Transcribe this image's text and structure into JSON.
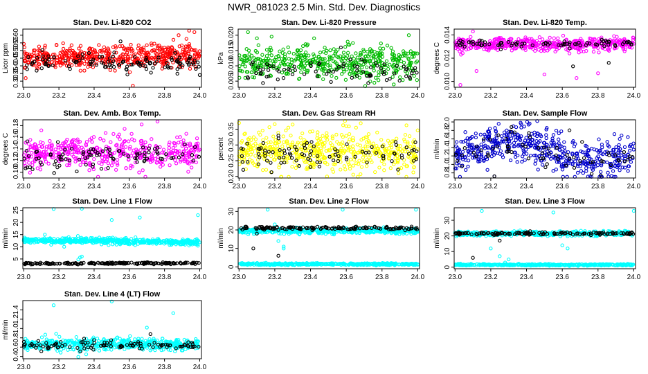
{
  "page": {
    "title": "NWR_081023  2.5 Min. Std. Dev. Diagnostics"
  },
  "chart_data": [
    {
      "type": "scatter",
      "title": "Stan. Dev. Li-820 CO2",
      "ylabel": "Licor ppm",
      "xlim": [
        22.995,
        24.01
      ],
      "ylim": [
        0.26,
        0.64
      ],
      "xticks": [
        "23.0",
        "23.2",
        "23.4",
        "23.6",
        "23.8",
        "24.0"
      ],
      "yticks": [
        "0.30",
        "0.35",
        "0.40",
        "0.45",
        "0.50",
        "0.55",
        "0.60"
      ],
      "grid": false,
      "series": [
        {
          "color": "#ff0000",
          "n": 520,
          "center": 0.46,
          "spread": 0.08,
          "drift": 0.03,
          "outliers": [
            [
              23.62,
              0.27
            ],
            [
              23.94,
              0.63
            ],
            [
              23.97,
              0.62
            ],
            [
              23.88,
              0.6
            ]
          ]
        },
        {
          "color": "#000000",
          "n": 120,
          "center": 0.42,
          "spread": 0.06,
          "drift": 0.0,
          "outliers": [
            [
              23.55,
              0.56
            ],
            [
              24.0,
              0.34
            ]
          ]
        }
      ]
    },
    {
      "type": "scatter",
      "title": "Stan. Dev. Li-820 Pressure",
      "ylabel": "kPa",
      "xlim": [
        22.995,
        24.01
      ],
      "ylim": [
        0.003,
        0.022
      ],
      "xticks": [
        "23.0",
        "23.2",
        "23.4",
        "23.6",
        "23.8",
        "24.0"
      ],
      "yticks": [
        "0.005",
        "0.010",
        "0.015",
        "0.020"
      ],
      "grid": false,
      "series": [
        {
          "color": "#00bb00",
          "n": 480,
          "center": 0.011,
          "spread": 0.006,
          "drift": 0.0,
          "outliers": [
            [
              23.05,
              0.021
            ],
            [
              23.1,
              0.019
            ],
            [
              23.95,
              0.02
            ],
            [
              23.42,
              0.019
            ]
          ]
        },
        {
          "color": "#000000",
          "n": 80,
          "center": 0.008,
          "spread": 0.004,
          "drift": 0.0,
          "outliers": [
            [
              23.57,
              0.016
            ]
          ]
        }
      ]
    },
    {
      "type": "scatter",
      "title": "Stan. Dev. Li-820 Temp.",
      "ylabel": "degrees C",
      "xlim": [
        22.995,
        24.01
      ],
      "ylim": [
        0.0095,
        0.0145
      ],
      "xticks": [
        "23.0",
        "23.2",
        "23.4",
        "23.6",
        "23.8",
        "24.0"
      ],
      "yticks": [
        "0.010",
        "0.012",
        "0.014"
      ],
      "grid": false,
      "series": [
        {
          "color": "#ff00ff",
          "n": 480,
          "center": 0.0132,
          "spread": 0.0006,
          "drift": 0.0,
          "outliers": [
            [
              23.03,
              0.0097
            ],
            [
              23.12,
              0.0109
            ],
            [
              23.5,
              0.0106
            ],
            [
              23.68,
              0.0103
            ],
            [
              23.8,
              0.0107
            ],
            [
              23.1,
              0.0143
            ]
          ]
        },
        {
          "color": "#000000",
          "n": 80,
          "center": 0.0132,
          "spread": 0.0004,
          "drift": 0.0,
          "outliers": [
            [
              23.66,
              0.0113
            ],
            [
              23.86,
              0.0116
            ]
          ]
        }
      ]
    },
    {
      "type": "scatter",
      "title": "Stan. Dev. Amb. Box Temp.",
      "ylabel": "degrees C",
      "xlim": [
        22.995,
        24.01
      ],
      "ylim": [
        0.09,
        0.19
      ],
      "xticks": [
        "23.0",
        "23.2",
        "23.4",
        "23.6",
        "23.8",
        "24.0"
      ],
      "yticks": [
        "0.10",
        "0.12",
        "0.14",
        "0.16",
        "0.18"
      ],
      "grid": false,
      "series": [
        {
          "color": "#ff00ff",
          "n": 470,
          "center": 0.132,
          "spread": 0.03,
          "drift": 0.0,
          "outliers": [
            [
              23.76,
              0.187
            ],
            [
              23.67,
              0.182
            ],
            [
              23.1,
              0.172
            ]
          ]
        },
        {
          "color": "#000000",
          "n": 90,
          "center": 0.128,
          "spread": 0.025,
          "drift": 0.0,
          "outliers": [
            [
              23.02,
              0.153
            ],
            [
              23.05,
              0.105
            ]
          ]
        }
      ]
    },
    {
      "type": "scatter",
      "title": "Stan. Dev. Gas Stream RH",
      "ylabel": "percent",
      "xlim": [
        22.995,
        24.01
      ],
      "ylim": [
        0.195,
        0.38
      ],
      "xticks": [
        "23.0",
        "23.2",
        "23.4",
        "23.6",
        "23.8",
        "24.0"
      ],
      "yticks": [
        "0.20",
        "0.25",
        "0.30",
        "0.35"
      ],
      "grid": false,
      "series": [
        {
          "color": "#ffff00",
          "n": 520,
          "center": 0.28,
          "spread": 0.07,
          "drift": 0.0,
          "outliers": [
            [
              23.0,
              0.37
            ],
            [
              23.3,
              0.365
            ],
            [
              23.6,
              0.36
            ]
          ]
        },
        {
          "color": "#000000",
          "n": 90,
          "center": 0.27,
          "spread": 0.05,
          "drift": 0.0,
          "outliers": [
            [
              23.22,
              0.33
            ],
            [
              23.88,
              0.3
            ]
          ]
        }
      ]
    },
    {
      "type": "scatter",
      "title": "Stan. Dev. Sample Flow",
      "ylabel": "ml/min",
      "xlim": [
        22.995,
        24.01
      ],
      "ylim": [
        0.68,
        2.05
      ],
      "xticks": [
        "23.0",
        "23.2",
        "23.4",
        "23.6",
        "23.8",
        "24.0"
      ],
      "yticks": [
        "0.8",
        "1.0",
        "1.2",
        "1.4",
        "1.6",
        "1.8",
        "2.0"
      ],
      "grid": false,
      "series": [
        {
          "color": "#0000cc",
          "n": 520,
          "center": 1.3,
          "spread": 0.5,
          "drift": 0.0,
          "wave": 0.22,
          "outliers": [
            [
              23.46,
              2.02
            ],
            [
              23.37,
              1.95
            ],
            [
              23.22,
              0.72
            ]
          ]
        },
        {
          "color": "#000000",
          "n": 70,
          "center": 1.25,
          "spread": 0.4,
          "drift": 0.0,
          "wave": 0.2,
          "outliers": [
            [
              23.22,
              0.72
            ]
          ]
        }
      ]
    },
    {
      "type": "scatter",
      "title": "Stan. Dev. Line 1 Flow",
      "ylabel": "ml/min",
      "xlim": [
        22.995,
        24.01
      ],
      "ylim": [
        1,
        26
      ],
      "xticks": [
        "23.0",
        "23.2",
        "23.4",
        "23.6",
        "23.8",
        "24.0"
      ],
      "yticks": [
        "5",
        "10",
        "15",
        "20",
        "25"
      ],
      "grid": false,
      "series": [
        {
          "color": "#00ffff",
          "n": 560,
          "center": 12.3,
          "spread": 1.3,
          "drift": -1.0,
          "outliers": [
            [
              23.17,
              25.5
            ],
            [
              23.33,
              25.6
            ],
            [
              23.5,
              21
            ],
            [
              23.66,
              22
            ],
            [
              23.99,
              23
            ],
            [
              23.31,
              4.8
            ],
            [
              23.32,
              5.6
            ],
            [
              23.33,
              6
            ],
            [
              23.12,
              15
            ],
            [
              23.23,
              10
            ]
          ]
        },
        {
          "color": "#000000",
          "n": 200,
          "center": 3.2,
          "spread": 0.4,
          "drift": 0.2,
          "outliers": []
        }
      ]
    },
    {
      "type": "scatter",
      "title": "Stan. Dev. Line 2 Flow",
      "ylabel": "ml/min",
      "xlim": [
        22.995,
        24.01
      ],
      "ylim": [
        -1,
        32
      ],
      "xticks": [
        "23.0",
        "23.2",
        "23.4",
        "23.6",
        "23.8",
        "24.0"
      ],
      "yticks": [
        "0",
        "10",
        "20",
        "30"
      ],
      "grid": false,
      "series": [
        {
          "color": "#00ffff",
          "n": 480,
          "center": 19.5,
          "spread": 1.6,
          "drift": 0.0,
          "outliers": [
            [
              23.2,
              23
            ],
            [
              23.22,
              14
            ],
            [
              23.25,
              11
            ],
            [
              23.25,
              10
            ],
            [
              23.16,
              31
            ],
            [
              23.58,
              31
            ],
            [
              23.99,
              31
            ]
          ]
        },
        {
          "color": "#00ffff",
          "n": 420,
          "center": 1.5,
          "spread": 0.6,
          "drift": 0.0,
          "outliers": []
        },
        {
          "color": "#000000",
          "n": 140,
          "center": 21,
          "spread": 0.9,
          "drift": 0.0,
          "outliers": [
            [
              23.08,
              10
            ],
            [
              23.22,
              6
            ],
            [
              23.1,
              18
            ],
            [
              23.22,
              20
            ]
          ]
        }
      ]
    },
    {
      "type": "scatter",
      "title": "Stan. Dev. Line 3 Flow",
      "ylabel": "ml/min",
      "xlim": [
        22.995,
        24.01
      ],
      "ylim": [
        -1,
        38
      ],
      "xticks": [
        "23.0",
        "23.2",
        "23.4",
        "23.6",
        "23.8",
        "24.0"
      ],
      "yticks": [
        "0",
        "10",
        "20",
        "30"
      ],
      "grid": false,
      "series": [
        {
          "color": "#00ffff",
          "n": 460,
          "center": 21.5,
          "spread": 1.6,
          "drift": 0.0,
          "outliers": [
            [
              23.2,
              12
            ],
            [
              23.25,
              7
            ],
            [
              23.28,
              3
            ],
            [
              23.3,
              5
            ],
            [
              23.6,
              14
            ],
            [
              23.15,
              36
            ],
            [
              23.55,
              35
            ],
            [
              24.0,
              36
            ],
            [
              23.63,
              12
            ]
          ]
        },
        {
          "color": "#00ffff",
          "n": 420,
          "center": 1.5,
          "spread": 0.6,
          "drift": 0.0,
          "outliers": []
        },
        {
          "color": "#000000",
          "n": 130,
          "center": 21.5,
          "spread": 0.9,
          "drift": 0.0,
          "outliers": [
            [
              23.1,
              6
            ],
            [
              23.25,
              17
            ],
            [
              23.42,
              23
            ]
          ]
        }
      ]
    },
    {
      "type": "scatter",
      "title": "Stan. Dev. Line 4 (LT) Flow",
      "ylabel": "ml/min",
      "xlim": [
        22.995,
        24.01
      ],
      "ylim": [
        0.35,
        1.6
      ],
      "xticks": [
        "23.0",
        "23.2",
        "23.4",
        "23.6",
        "23.8",
        "24.0"
      ],
      "yticks": [
        "0.4",
        "0.6",
        "0.8",
        "1.0",
        "1.2",
        "1.4"
      ],
      "grid": false,
      "series": [
        {
          "color": "#00ffff",
          "n": 520,
          "center": 0.66,
          "spread": 0.14,
          "drift": 0.0,
          "outliers": [
            [
              23.17,
              1.5
            ],
            [
              23.5,
              1.58
            ],
            [
              23.85,
              1.33
            ],
            [
              23.31,
              0.39
            ],
            [
              23.7,
              1.02
            ]
          ]
        },
        {
          "color": "#000000",
          "n": 100,
          "center": 0.64,
          "spread": 0.1,
          "drift": 0.0,
          "outliers": [
            [
              23.72,
              0.88
            ],
            [
              23.1,
              0.51
            ]
          ]
        }
      ]
    }
  ]
}
